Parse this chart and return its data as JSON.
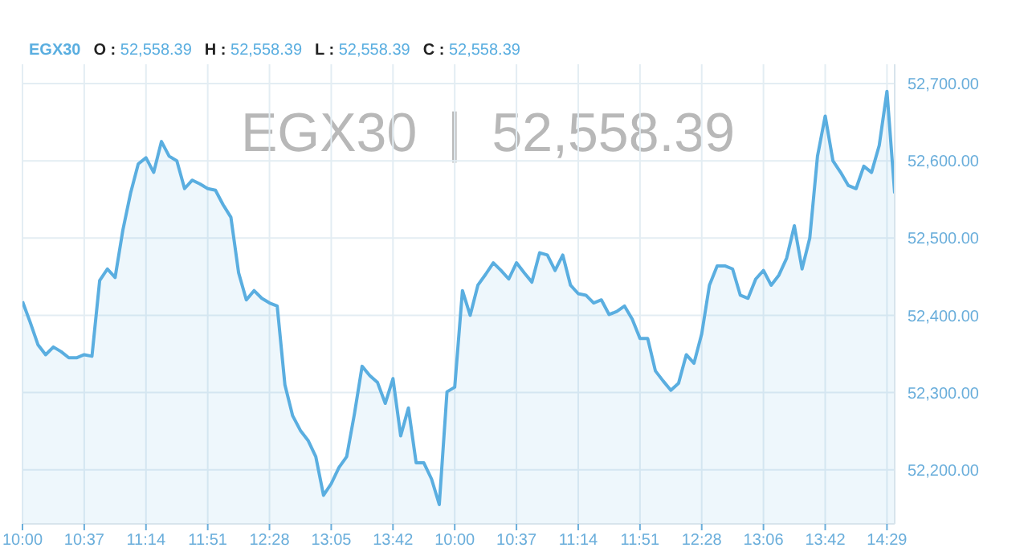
{
  "chart_data": {
    "type": "area",
    "title": "EGX30",
    "subtitle": "EGX30  |  52,558.39",
    "annotations": [
      "O : 52,558.39",
      "H : 52,558.39",
      "L : 52,558.39",
      "C : 52,558.39"
    ],
    "categories": [
      "10:00",
      null,
      null,
      null,
      null,
      null,
      null,
      null,
      "10:37",
      null,
      null,
      null,
      null,
      null,
      null,
      null,
      "11:14",
      null,
      null,
      null,
      null,
      null,
      null,
      null,
      "11:51",
      null,
      null,
      null,
      null,
      null,
      null,
      null,
      "12:28",
      null,
      null,
      null,
      null,
      null,
      null,
      null,
      "13:05",
      null,
      null,
      null,
      null,
      null,
      null,
      null,
      "13:42",
      null,
      null,
      null,
      null,
      null,
      null,
      null,
      "10:00",
      null,
      null,
      null,
      null,
      null,
      null,
      null,
      "10:37",
      null,
      null,
      null,
      null,
      null,
      null,
      null,
      "11:14",
      null,
      null,
      null,
      null,
      null,
      null,
      null,
      "11:51",
      null,
      null,
      null,
      null,
      null,
      null,
      null,
      "12:28",
      null,
      null,
      null,
      null,
      null,
      null,
      null,
      "13:06",
      null,
      null,
      null,
      null,
      null,
      null,
      null,
      "13:42",
      null,
      null,
      null,
      null,
      null,
      null,
      null,
      "14:29",
      null
    ],
    "series": [
      {
        "color": "#5aaee0",
        "values": [
          52418,
          52391,
          52362,
          52349,
          52359,
          52353,
          52345,
          52345,
          52349,
          52347,
          52445,
          52460,
          52449,
          52510,
          52558,
          52596,
          52604,
          52585,
          52625,
          52606,
          52600,
          52564,
          52575,
          52570,
          52564,
          52562,
          52543,
          52527,
          52455,
          52420,
          52432,
          52422,
          52416,
          52412,
          52310,
          52270,
          52251,
          52238,
          52217,
          52167,
          52182,
          52203,
          52217,
          52272,
          52334,
          52322,
          52313,
          52286,
          52318,
          52244,
          52280,
          52209,
          52209,
          52188,
          52155,
          52301,
          52307,
          52432,
          52400,
          52439,
          52453,
          52468,
          52458,
          52447,
          52468,
          52455,
          52443,
          52481,
          52478,
          52458,
          52478,
          52439,
          52428,
          52426,
          52416,
          52420,
          52401,
          52405,
          52412,
          52395,
          52370,
          52370,
          52328,
          52315,
          52303,
          52312,
          52349,
          52338,
          52376,
          52439,
          52464,
          52464,
          52460,
          52426,
          52422,
          52447,
          52458,
          52439,
          52452,
          52474,
          52516,
          52460,
          52500,
          52606,
          52658,
          52600,
          52585,
          52568,
          52564,
          52593,
          52585,
          52620,
          52690,
          52558
        ]
      }
    ],
    "ylim": [
      52130,
      52725
    ],
    "yticks": [
      {
        "value": 52200,
        "label": "52,200.00"
      },
      {
        "value": 52300,
        "label": "52,300.00"
      },
      {
        "value": 52400,
        "label": "52,400.00"
      },
      {
        "value": 52500,
        "label": "52,500.00"
      },
      {
        "value": 52600,
        "label": "52,600.00"
      },
      {
        "value": 52700,
        "label": "52,700.00"
      }
    ],
    "grid": true,
    "marker": "none"
  }
}
